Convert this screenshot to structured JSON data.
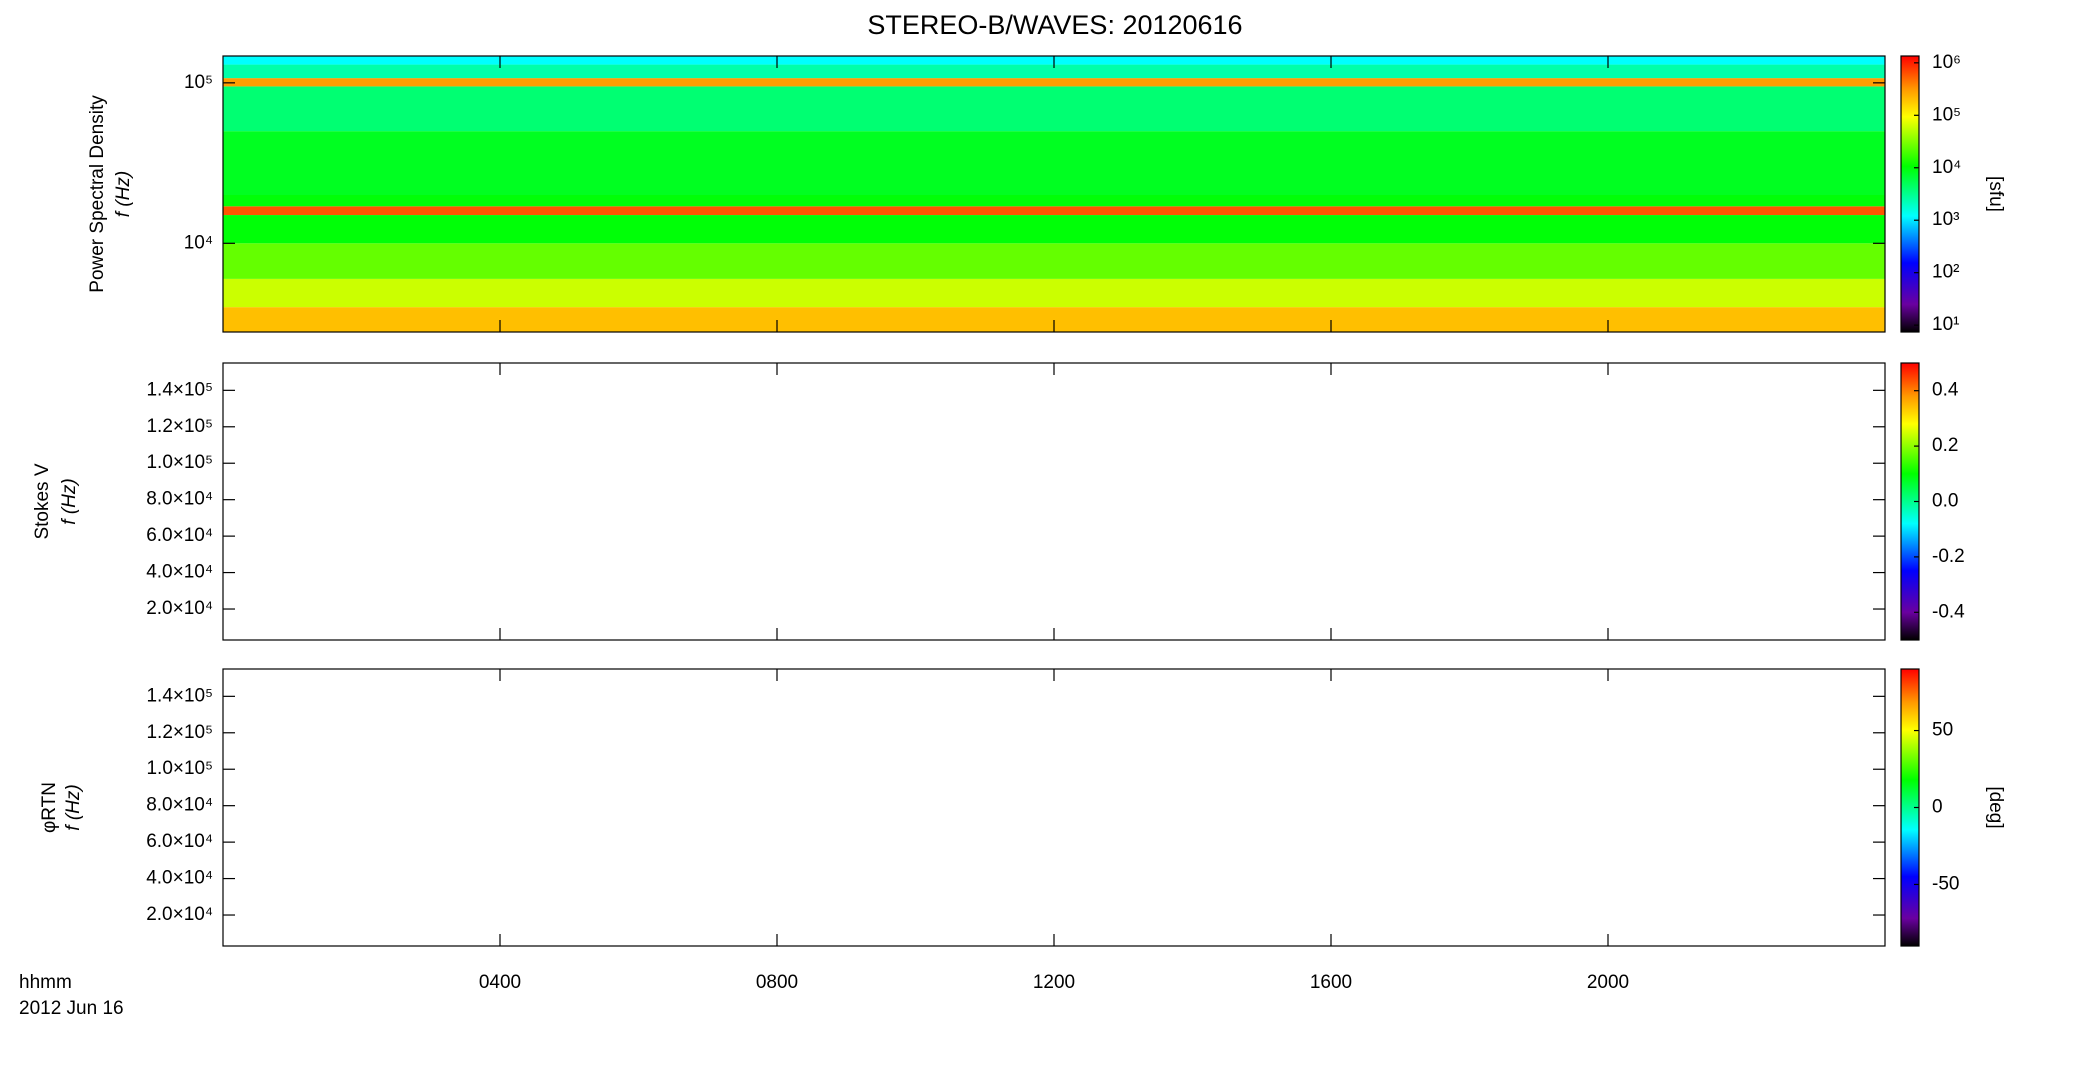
{
  "chart_data": {
    "type": "spectrogram",
    "title": "STEREO-B/WAVES: 20120616",
    "xlabel": "hhmm",
    "date_label": "2012 Jun 16",
    "xlim": [
      0,
      24
    ],
    "xticks": [
      {
        "value": 4,
        "label": "0400"
      },
      {
        "value": 8,
        "label": "0800"
      },
      {
        "value": 12,
        "label": "1200"
      },
      {
        "value": 16,
        "label": "1600"
      },
      {
        "value": 20,
        "label": "2000"
      }
    ],
    "colormap": [
      [
        0,
        "#000000"
      ],
      [
        0.1,
        "#6a00a0"
      ],
      [
        0.25,
        "#0000ff"
      ],
      [
        0.42,
        "#00ffff"
      ],
      [
        0.6,
        "#00ff00"
      ],
      [
        0.78,
        "#ffff00"
      ],
      [
        0.88,
        "#ff9900"
      ],
      [
        1,
        "#ff0000"
      ]
    ],
    "panels": [
      {
        "ylabel": "Power Spectral Density",
        "ylabel2": "f (Hz)",
        "log_y": true,
        "ylim": [
          2800,
          147000
        ],
        "yticks": [
          {
            "value": 10000,
            "label": "10⁴"
          },
          {
            "value": 100000,
            "label": "10⁵"
          }
        ],
        "colorbar": {
          "label": "[sfu]",
          "log": true,
          "zlim": [
            7.4,
            1350000
          ],
          "ticks": [
            {
              "value": 10,
              "label": "10¹"
            },
            {
              "value": 100,
              "label": "10²"
            },
            {
              "value": 1000,
              "label": "10³"
            },
            {
              "value": 10000,
              "label": "10⁴"
            },
            {
              "value": 100000,
              "label": "10⁵"
            },
            {
              "value": 1000000,
              "label": "10⁶"
            }
          ]
        },
        "bands": {
          "edges": [
            2800,
            4000,
            6000,
            10000,
            15000,
            17000,
            20000,
            50000,
            95000,
            107000,
            130000,
            147000
          ],
          "values": [
            200000,
            60000,
            25000,
            10000,
            600000,
            10000,
            8000,
            4000,
            300000,
            2500,
            1200
          ]
        }
      },
      {
        "ylabel": "Stokes V",
        "ylabel2": "f (Hz)",
        "log_y": false,
        "ylim": [
          3000,
          155000
        ],
        "yticks": [
          {
            "value": 20000,
            "label": "2.0×10⁴"
          },
          {
            "value": 40000,
            "label": "4.0×10⁴"
          },
          {
            "value": 60000,
            "label": "6.0×10⁴"
          },
          {
            "value": 80000,
            "label": "8.0×10⁴"
          },
          {
            "value": 100000,
            "label": "1.0×10⁵"
          },
          {
            "value": 120000,
            "label": "1.2×10⁵"
          },
          {
            "value": 140000,
            "label": "1.4×10⁵"
          }
        ],
        "colorbar": {
          "log": false,
          "zlim": [
            -0.5,
            0.5
          ],
          "ticks": [
            -0.4,
            -0.2,
            {
              "value": 0,
              "label": "0.0"
            },
            0.2,
            0.4
          ]
        }
      },
      {
        "ylabel": "φRTN",
        "ylabel2": "f (Hz)",
        "log_y": false,
        "ylim": [
          3000,
          155000
        ],
        "yticks": [
          {
            "value": 20000,
            "label": "2.0×10⁴"
          },
          {
            "value": 40000,
            "label": "4.0×10⁴"
          },
          {
            "value": 60000,
            "label": "6.0×10⁴"
          },
          {
            "value": 80000,
            "label": "8.0×10⁴"
          },
          {
            "value": 100000,
            "label": "1.0×10⁵"
          },
          {
            "value": 120000,
            "label": "1.2×10⁵"
          },
          {
            "value": 140000,
            "label": "1.4×10⁵"
          }
        ],
        "colorbar": {
          "label": "[deg]",
          "log": false,
          "zlim": [
            -90,
            90
          ],
          "ticks": [
            -50,
            0,
            50
          ]
        }
      }
    ]
  }
}
